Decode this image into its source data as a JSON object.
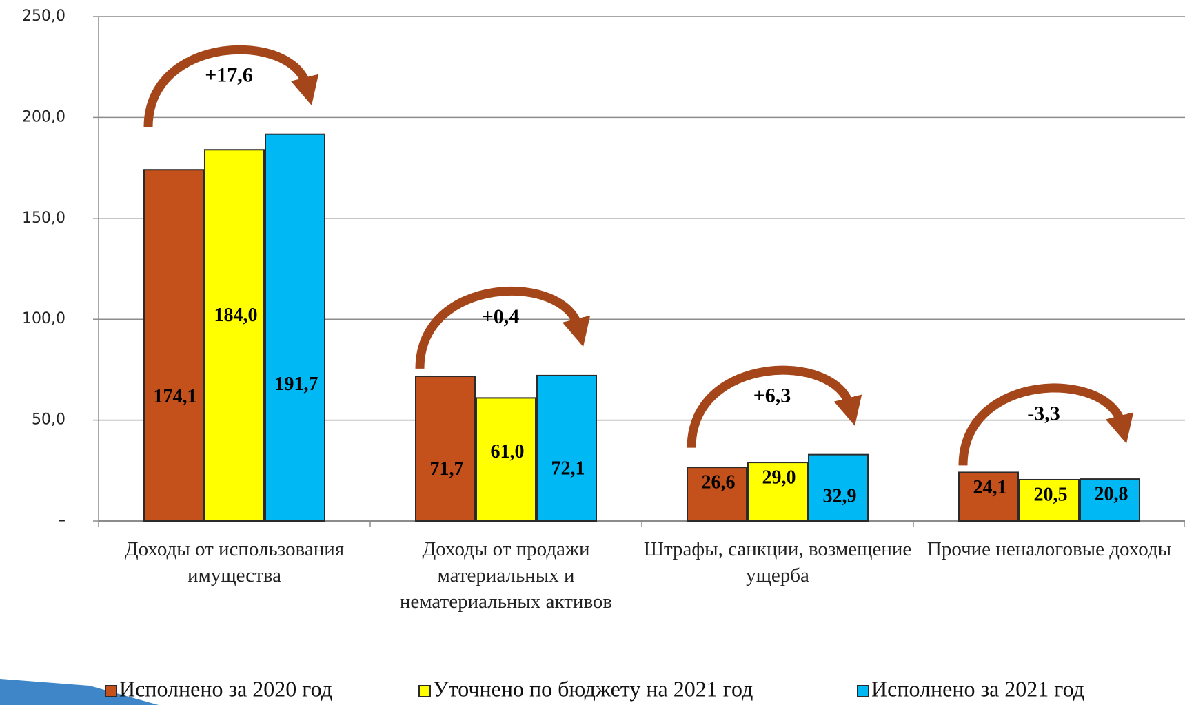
{
  "chart_data": {
    "type": "bar",
    "categories": [
      "Доходы от использования имущества",
      "Доходы от продажи материальных и нематериальных активов",
      "Штрафы, санкции, возмещение ущерба",
      "Прочие неналоговые доходы"
    ],
    "series": [
      {
        "name": "Исполнено за 2020 год",
        "color": "#c4501b",
        "values": [
          174.1,
          71.7,
          26.6,
          24.1
        ],
        "value_labels": [
          "174,1",
          "71,7",
          "26,6",
          "24,1"
        ]
      },
      {
        "name": "Уточнено по бюджету на 2021 год",
        "color": "#ffff00",
        "values": [
          184.0,
          61.0,
          29.0,
          20.5
        ],
        "value_labels": [
          "184,0",
          "61,0",
          "29,0",
          "20,5"
        ]
      },
      {
        "name": "Исполнено за 2021 год",
        "color": "#00b8f4",
        "values": [
          191.7,
          72.1,
          32.9,
          20.8
        ],
        "value_labels": [
          "191,7",
          "72,1",
          "32,9",
          "20,8"
        ]
      }
    ],
    "annotations": [
      "+17,6",
      "+0,4",
      "+6,3",
      "-3,3"
    ],
    "ylim": [
      0,
      250
    ],
    "yticks": [
      {
        "value": 0,
        "label": "–"
      },
      {
        "value": 50,
        "label": "50,0"
      },
      {
        "value": 100,
        "label": "100,0"
      },
      {
        "value": 150,
        "label": "150,0"
      },
      {
        "value": 200,
        "label": "200,0"
      },
      {
        "value": 250,
        "label": "250,0"
      }
    ],
    "grid": true,
    "legend": "bottom"
  }
}
